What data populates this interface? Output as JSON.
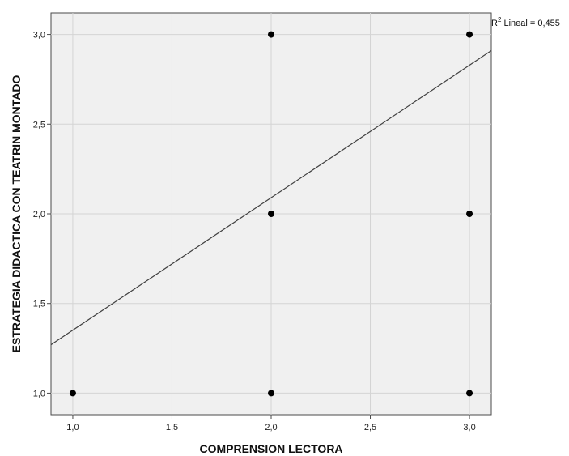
{
  "chart_data": {
    "type": "scatter",
    "title": "",
    "xlabel": "COMPRENSION LECTORA",
    "ylabel": "ESTRATEGIA DIDACTICA CON TEATRIN MONTADO",
    "xlim": [
      0.89,
      3.11
    ],
    "ylim": [
      0.88,
      3.12
    ],
    "x_ticks": [
      1.0,
      1.5,
      2.0,
      2.5,
      3.0
    ],
    "x_tick_labels": [
      "1,0",
      "1,5",
      "2,0",
      "2,5",
      "3,0"
    ],
    "y_ticks": [
      1.0,
      1.5,
      2.0,
      2.5,
      3.0
    ],
    "y_tick_labels": [
      "1,0",
      "1,5",
      "2,0",
      "2,5",
      "3,0"
    ],
    "grid": true,
    "points": [
      {
        "x": 1.0,
        "y": 1.0
      },
      {
        "x": 2.0,
        "y": 1.0
      },
      {
        "x": 2.0,
        "y": 2.0
      },
      {
        "x": 2.0,
        "y": 3.0
      },
      {
        "x": 3.0,
        "y": 1.0
      },
      {
        "x": 3.0,
        "y": 2.0
      },
      {
        "x": 3.0,
        "y": 3.0
      }
    ],
    "fit_line": {
      "x": [
        0.89,
        3.11
      ],
      "y": [
        1.27,
        2.91
      ]
    },
    "r2_label": {
      "prefix": "R",
      "sup": "2",
      "text": " Lineal = 0,455"
    },
    "colors": {
      "plot_bg": "#f0f0f0",
      "grid": "#d4d4d4",
      "points": "#000000",
      "line": "#404040"
    }
  }
}
